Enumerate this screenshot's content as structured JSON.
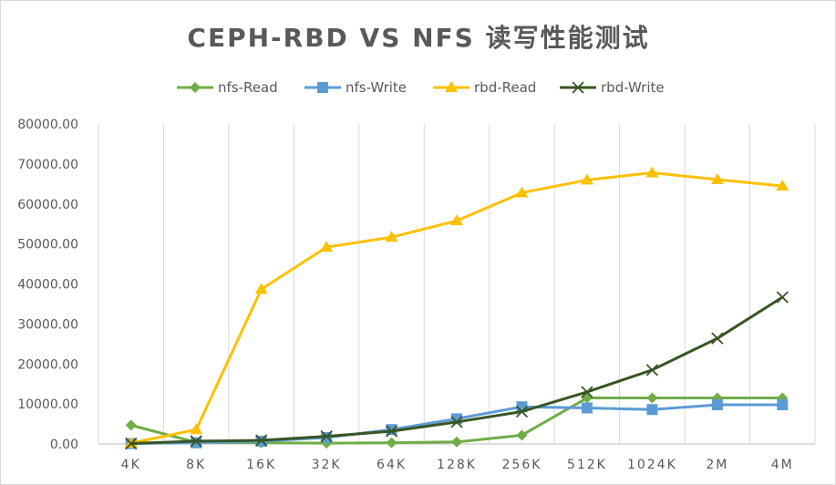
{
  "chart_data": {
    "type": "line",
    "title": "CEPH-RBD VS NFS 读写性能测试",
    "xlabel": "",
    "ylabel": "",
    "categories": [
      "4K",
      "8K",
      "16K",
      "32K",
      "64K",
      "128K",
      "256K",
      "512K",
      "1024K",
      "2M",
      "4M"
    ],
    "y_tick_labels": [
      "0.00",
      "10000.00",
      "20000.00",
      "30000.00",
      "40000.00",
      "50000.00",
      "60000.00",
      "70000.00",
      "80000.00"
    ],
    "ylim": [
      0,
      80000
    ],
    "grid": "vertical",
    "legend_position": "top",
    "series": [
      {
        "name": "nfs-Read",
        "color": "#70ad47",
        "marker": "diamond",
        "values": [
          4700,
          400,
          300,
          200,
          300,
          500,
          2200,
          11500,
          11500,
          11500,
          11500
        ]
      },
      {
        "name": "nfs-Write",
        "color": "#5b9bd5",
        "marker": "square",
        "values": [
          100,
          300,
          700,
          1600,
          3600,
          6300,
          9300,
          9000,
          8600,
          9800,
          9800
        ]
      },
      {
        "name": "rbd-Read",
        "color": "#ffc000",
        "marker": "triangle",
        "values": [
          200,
          3600,
          38700,
          49200,
          51700,
          55800,
          62800,
          66000,
          67800,
          66100,
          64500
        ]
      },
      {
        "name": "rbd-Write",
        "color": "#375623",
        "marker": "x",
        "values": [
          100,
          700,
          900,
          1900,
          3200,
          5500,
          8100,
          13000,
          18500,
          26400,
          36700
        ]
      }
    ]
  }
}
